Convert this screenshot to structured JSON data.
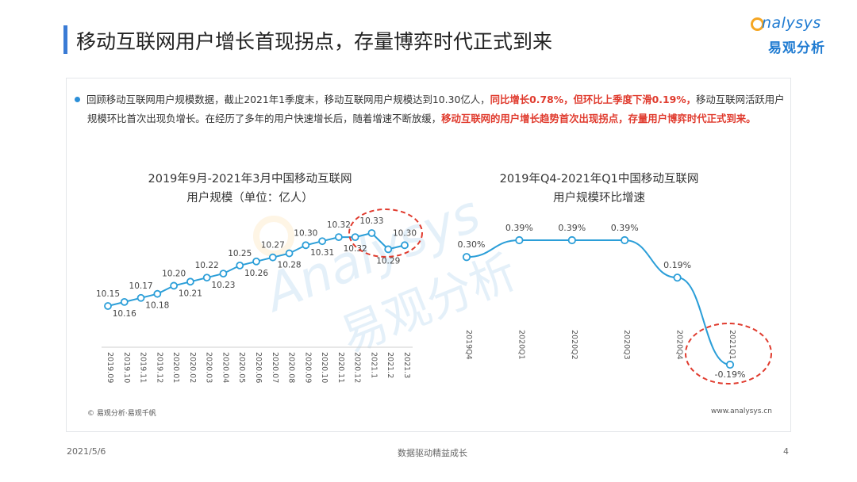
{
  "header": {
    "title": "移动互联网用户增长首现拐点，存量博弈时代正式到来",
    "logo_en": "nalysys",
    "logo_cn": "易观分析"
  },
  "description": {
    "part1": "回顾移动互联网用户规模数据，截止2021年1季度末，移动互联网用户规模达到10.30亿人，",
    "highlight1": "同比增长0.78%，但环比上季度下滑0.19%，",
    "part2": "移动互联网活跃用户规模环比首次出现负增长。在经历了多年的用户快速增长后，随着增速不断放缓，",
    "highlight2": "移动互联网的用户增长趋势首次出现拐点，存量用户博弈时代正式到来。"
  },
  "watermark": {
    "en": "Analysys",
    "cn": "易观分析"
  },
  "chart_data": [
    {
      "type": "line",
      "title": "2019年9月-2021年3月中国移动互联网",
      "subtitle": "用户规模（单位：亿人）",
      "categories": [
        "2019.09",
        "2019.10",
        "2019.11",
        "2019.12",
        "2020.01",
        "2020.02",
        "2020.03",
        "2020.04",
        "2020.05",
        "2020.06",
        "2020.07",
        "2020.08",
        "2020.09",
        "2020.10",
        "2020.11",
        "2020.12",
        "2021.1",
        "2021.2",
        "2021.3"
      ],
      "values": [
        10.15,
        10.16,
        10.17,
        10.18,
        10.2,
        10.21,
        10.22,
        10.23,
        10.25,
        10.26,
        10.27,
        10.28,
        10.3,
        10.31,
        10.32,
        10.32,
        10.33,
        10.29,
        10.3
      ],
      "value_labels": [
        "10.15",
        "10.16",
        "10.17",
        "10.18",
        "10.20",
        "10.21",
        "10.22",
        "10.23",
        "10.25",
        "10.26",
        "10.27",
        "10.28",
        "10.30",
        "10.31",
        "10.32",
        "10.32",
        "10.33",
        "10.29",
        "10.30"
      ],
      "color": "#2b9ed8"
    },
    {
      "type": "line",
      "title": "2019年Q4-2021年Q1中国移动互联网",
      "subtitle": "用户规模环比增速",
      "categories": [
        "2019Q4",
        "2020Q1",
        "2020Q2",
        "2020Q3",
        "2020Q4",
        "2021Q1"
      ],
      "values": [
        0.3,
        0.39,
        0.39,
        0.39,
        0.19,
        -0.19
      ],
      "value_labels": [
        "0.30%",
        "0.39%",
        "0.39%",
        "0.39%",
        "0.19%",
        "-0.19%"
      ],
      "color": "#2b9ed8"
    }
  ],
  "footer": {
    "source": "© 易观分析·易观千帆",
    "site": "www.analysys.cn"
  },
  "page": {
    "date": "2021/5/6",
    "slogan": "数据驱动精益成长",
    "number": "4"
  }
}
